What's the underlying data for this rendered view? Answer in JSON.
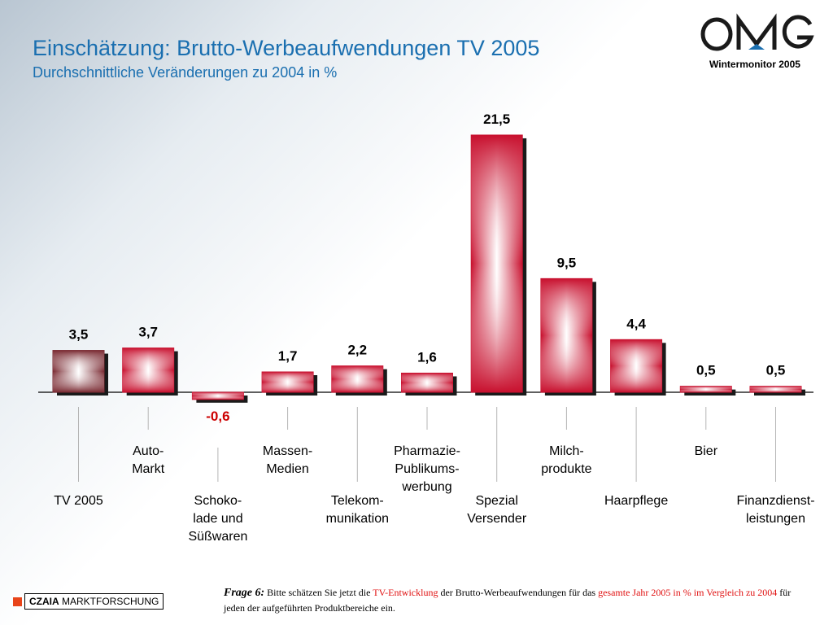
{
  "header": {
    "title": "Einschätzung: Brutto-Werbeaufwendungen TV 2005",
    "subtitle": "Durchschnittliche Veränderungen zu 2004 in %"
  },
  "logo": {
    "text": "OMG",
    "subtitle": "Wintermonitor 2005"
  },
  "chart_data": {
    "type": "bar",
    "categories": [
      "TV 2005",
      "Auto-\nMarkt",
      "Schoko-\nlade und\nSüßwaren",
      "Massen-\nMedien",
      "Telekom-\nmunikation",
      "Pharmazie-\nPublikums-\nwerbung",
      "Spezial\nVersender",
      "Milch-\nprodukte",
      "Haarpflege",
      "Bier",
      "Finanzdienst-\nleistungen"
    ],
    "values": [
      3.5,
      3.7,
      -0.6,
      1.7,
      2.2,
      1.6,
      21.5,
      9.5,
      4.4,
      0.5,
      0.5
    ],
    "value_labels": [
      "3,5",
      "3,7",
      "-0,6",
      "1,7",
      "2,2",
      "1,6",
      "21,5",
      "9,5",
      "4,4",
      "0,5",
      "0,5"
    ],
    "title": "Einschätzung: Brutto-Werbeaufwendungen TV 2005",
    "subtitle": "Durchschnittliche Veränderungen zu 2004 in %",
    "xlabel": "",
    "ylabel": "",
    "ylim": [
      -0.6,
      21.5
    ],
    "grid": false,
    "colors": {
      "bar": "#c8102e",
      "first_bar": "#7a2a32",
      "negative_label": "#cc0000",
      "label": "#000000"
    }
  },
  "footer": {
    "brand_bold": "CZAIA",
    "brand_rest": " MARKTFORSCHUNG",
    "question_label": "Frage 6:",
    "q_part1": " Bitte schätzen Sie jetzt die ",
    "q_hl1": "TV-Entwicklung",
    "q_part2": " der Brutto-Werbeaufwendungen für das ",
    "q_hl2": "gesamte Jahr 2005 in % im Vergleich zu 2004",
    "q_part3": " für jeden der aufgeführten Produktbereiche ein."
  }
}
